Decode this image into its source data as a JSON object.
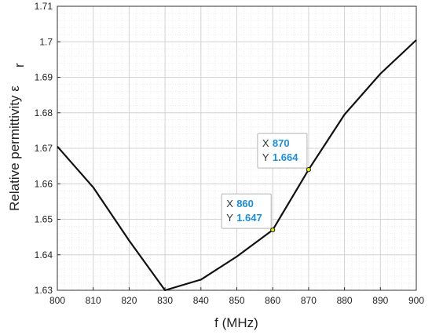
{
  "chart_data": {
    "type": "line",
    "title": "",
    "xlabel": "f (MHz)",
    "ylabel": "Relative permittivity ε",
    "ylabel_subscript": "r",
    "xlim": [
      800,
      900
    ],
    "ylim": [
      1.63,
      1.71
    ],
    "xticks": [
      800,
      810,
      820,
      830,
      840,
      850,
      860,
      870,
      880,
      890,
      900
    ],
    "yticks": [
      "1.63",
      "1.64",
      "1.65",
      "1.66",
      "1.67",
      "1.68",
      "1.69",
      "1.7",
      "1.71"
    ],
    "grid": true,
    "minor_grid": true,
    "line_color": "#111111",
    "series": [
      {
        "x": [
          800,
          810,
          820,
          830,
          840,
          850,
          860,
          870,
          880,
          890,
          900
        ],
        "values": [
          1.6705,
          1.659,
          1.644,
          1.63,
          1.633,
          1.6395,
          1.647,
          1.664,
          1.6795,
          1.691,
          1.7005
        ]
      }
    ],
    "datatips": [
      {
        "x_key": "X",
        "x_value": "870",
        "y_key": "Y",
        "y_value": "1.664",
        "x": 870,
        "y": 1.664
      },
      {
        "x_key": "X",
        "x_value": "860",
        "y_key": "Y",
        "y_value": "1.647",
        "x": 860,
        "y": 1.647
      }
    ]
  }
}
